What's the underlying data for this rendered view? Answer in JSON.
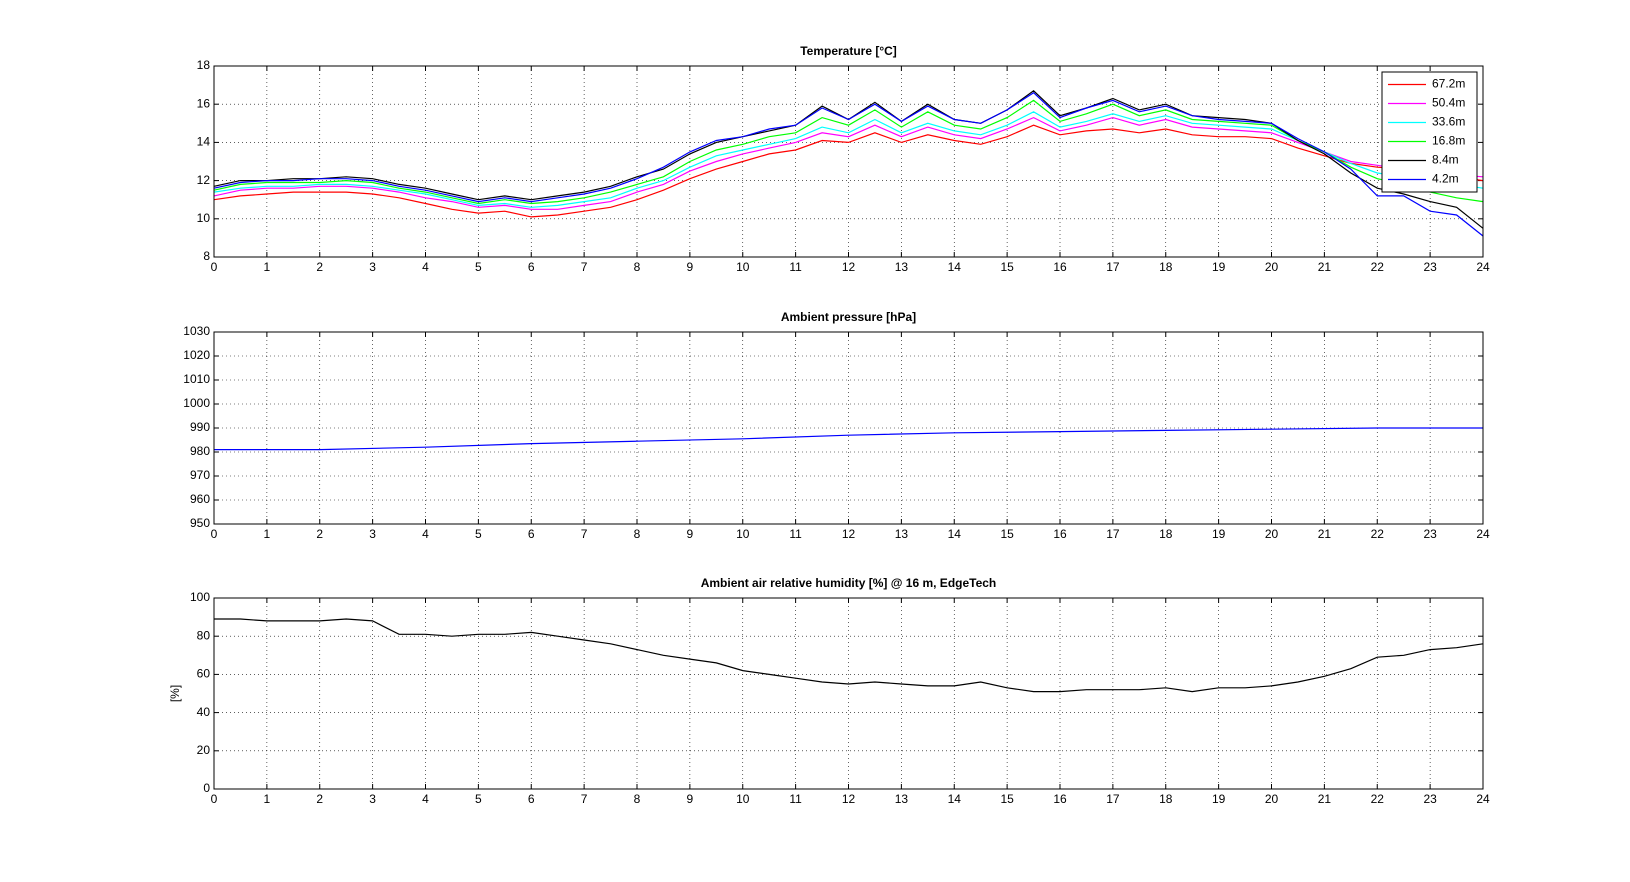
{
  "chart_data": [
    {
      "type": "line",
      "title": "Temperature [°C]",
      "x": [
        0,
        0.5,
        1,
        1.5,
        2,
        2.5,
        3,
        3.5,
        4,
        4.5,
        5,
        5.5,
        6,
        6.5,
        7,
        7.5,
        8,
        8.5,
        9,
        9.5,
        10,
        10.5,
        11,
        11.5,
        12,
        12.5,
        13,
        13.5,
        14,
        14.5,
        15,
        15.5,
        16,
        16.5,
        17,
        17.5,
        18,
        18.5,
        19,
        19.5,
        20,
        20.5,
        21,
        21.5,
        22,
        22.5,
        23,
        23.5,
        24
      ],
      "series": [
        {
          "name": "67.2m",
          "color": "#ff0000",
          "values": [
            11.0,
            11.2,
            11.3,
            11.4,
            11.4,
            11.4,
            11.3,
            11.1,
            10.8,
            10.5,
            10.3,
            10.4,
            10.1,
            10.2,
            10.4,
            10.6,
            11.0,
            11.5,
            12.1,
            12.6,
            13.0,
            13.4,
            13.6,
            14.1,
            14.0,
            14.5,
            14.0,
            14.4,
            14.1,
            13.9,
            14.3,
            14.9,
            14.4,
            14.6,
            14.7,
            14.5,
            14.7,
            14.4,
            14.3,
            14.3,
            14.2,
            13.7,
            13.3,
            12.9,
            12.7,
            12.6,
            12.4,
            12.2,
            12.0
          ]
        },
        {
          "name": "50.4m",
          "color": "#ff00ff",
          "values": [
            11.2,
            11.5,
            11.6,
            11.6,
            11.7,
            11.7,
            11.6,
            11.4,
            11.1,
            10.9,
            10.6,
            10.7,
            10.5,
            10.5,
            10.7,
            10.9,
            11.4,
            11.8,
            12.5,
            13.0,
            13.4,
            13.7,
            14.0,
            14.5,
            14.3,
            14.9,
            14.3,
            14.8,
            14.4,
            14.2,
            14.7,
            15.3,
            14.6,
            14.9,
            15.3,
            14.9,
            15.2,
            14.8,
            14.7,
            14.6,
            14.5,
            14.0,
            13.5,
            13.0,
            12.8,
            12.6,
            12.5,
            12.3,
            12.2
          ]
        },
        {
          "name": "33.6m",
          "color": "#00ffff",
          "values": [
            11.4,
            11.6,
            11.7,
            11.7,
            11.8,
            11.8,
            11.7,
            11.5,
            11.3,
            11.0,
            10.7,
            10.8,
            10.6,
            10.7,
            10.9,
            11.1,
            11.6,
            12.0,
            12.7,
            13.3,
            13.6,
            13.9,
            14.2,
            14.8,
            14.5,
            15.2,
            14.5,
            15.0,
            14.6,
            14.4,
            14.9,
            15.6,
            14.8,
            15.1,
            15.5,
            15.1,
            15.4,
            15.0,
            14.9,
            14.8,
            14.7,
            14.1,
            13.5,
            12.9,
            12.4,
            12.2,
            12.0,
            11.8,
            11.6
          ]
        },
        {
          "name": "16.8m",
          "color": "#00ff00",
          "values": [
            11.5,
            11.8,
            11.9,
            11.9,
            11.9,
            12.0,
            11.9,
            11.6,
            11.4,
            11.1,
            10.8,
            11.0,
            10.8,
            10.9,
            11.1,
            11.4,
            11.8,
            12.2,
            13.0,
            13.6,
            13.9,
            14.3,
            14.5,
            15.3,
            14.9,
            15.7,
            14.8,
            15.6,
            14.9,
            14.7,
            15.3,
            16.2,
            15.1,
            15.5,
            16.0,
            15.4,
            15.7,
            15.2,
            15.1,
            15.0,
            14.9,
            14.1,
            13.5,
            12.7,
            12.1,
            11.8,
            11.4,
            11.1,
            10.9
          ]
        },
        {
          "name": "8.4m",
          "color": "#000000",
          "values": [
            11.7,
            12.0,
            12.0,
            12.1,
            12.1,
            12.2,
            12.1,
            11.8,
            11.6,
            11.3,
            11.0,
            11.2,
            11.0,
            11.2,
            11.4,
            11.7,
            12.2,
            12.6,
            13.4,
            14.0,
            14.3,
            14.6,
            14.9,
            15.9,
            15.2,
            16.1,
            15.1,
            16.0,
            15.2,
            15.0,
            15.7,
            16.7,
            15.4,
            15.8,
            16.3,
            15.7,
            16.0,
            15.4,
            15.3,
            15.2,
            15.0,
            14.1,
            13.4,
            12.4,
            11.6,
            11.3,
            10.9,
            10.6,
            9.5
          ]
        },
        {
          "name": "4.2m",
          "color": "#0000ff",
          "values": [
            11.6,
            11.9,
            12.0,
            12.0,
            12.1,
            12.1,
            12.0,
            11.7,
            11.5,
            11.2,
            10.9,
            11.1,
            10.9,
            11.1,
            11.3,
            11.6,
            12.1,
            12.7,
            13.5,
            14.1,
            14.3,
            14.7,
            14.9,
            15.8,
            15.2,
            16.0,
            15.1,
            15.9,
            15.2,
            15.0,
            15.7,
            16.6,
            15.3,
            15.8,
            16.2,
            15.6,
            15.9,
            15.4,
            15.2,
            15.1,
            15.0,
            14.2,
            13.5,
            12.6,
            11.2,
            11.2,
            10.4,
            10.2,
            9.1
          ]
        }
      ],
      "xlim": [
        0,
        24
      ],
      "xticks": [
        0,
        1,
        2,
        3,
        4,
        5,
        6,
        7,
        8,
        9,
        10,
        11,
        12,
        13,
        14,
        15,
        16,
        17,
        18,
        19,
        20,
        21,
        22,
        23,
        24
      ],
      "ylim": [
        8,
        18
      ],
      "yticks": [
        8,
        10,
        12,
        14,
        16,
        18
      ],
      "grid": true,
      "legend": "northeast"
    },
    {
      "type": "line",
      "title": "Ambient pressure [hPa]",
      "x": [
        0,
        2,
        4,
        6,
        8,
        10,
        12,
        14,
        16,
        18,
        20,
        22,
        24
      ],
      "series": [
        {
          "color": "#0000ff",
          "values": [
            981,
            981,
            982,
            983.5,
            984.5,
            985.5,
            987,
            988,
            988.5,
            989,
            989.5,
            990,
            990
          ]
        }
      ],
      "xlim": [
        0,
        24
      ],
      "xticks": [
        0,
        1,
        2,
        3,
        4,
        5,
        6,
        7,
        8,
        9,
        10,
        11,
        12,
        13,
        14,
        15,
        16,
        17,
        18,
        19,
        20,
        21,
        22,
        23,
        24
      ],
      "ylim": [
        950,
        1030
      ],
      "yticks": [
        950,
        960,
        970,
        980,
        990,
        1000,
        1010,
        1020,
        1030
      ],
      "grid": true
    },
    {
      "type": "line",
      "title": "Ambient air relative humidity [%] @ 16 m, EdgeTech",
      "ylabel": "[%]",
      "x": [
        0,
        0.5,
        1,
        1.5,
        2,
        2.5,
        3,
        3.5,
        4,
        4.5,
        5,
        5.5,
        6,
        6.5,
        7,
        7.5,
        8,
        8.5,
        9,
        9.5,
        10,
        10.5,
        11,
        11.5,
        12,
        12.5,
        13,
        13.5,
        14,
        14.5,
        15,
        15.5,
        16,
        16.5,
        17,
        17.5,
        18,
        18.5,
        19,
        19.5,
        20,
        20.5,
        21,
        21.5,
        22,
        22.5,
        23,
        23.5,
        24
      ],
      "series": [
        {
          "color": "#000000",
          "values": [
            89,
            89,
            88,
            88,
            88,
            89,
            88,
            81,
            81,
            80,
            81,
            81,
            82,
            80,
            78,
            76,
            73,
            70,
            68,
            66,
            62,
            60,
            58,
            56,
            55,
            56,
            55,
            54,
            54,
            56,
            53,
            51,
            51,
            52,
            52,
            52,
            53,
            51,
            53,
            53,
            54,
            56,
            59,
            63,
            69,
            70,
            73,
            74,
            76
          ]
        }
      ],
      "xlim": [
        0,
        24
      ],
      "xticks": [
        0,
        1,
        2,
        3,
        4,
        5,
        6,
        7,
        8,
        9,
        10,
        11,
        12,
        13,
        14,
        15,
        16,
        17,
        18,
        19,
        20,
        21,
        22,
        23,
        24
      ],
      "ylim": [
        0,
        100
      ],
      "yticks": [
        0,
        20,
        40,
        60,
        80,
        100
      ],
      "grid": true
    }
  ]
}
